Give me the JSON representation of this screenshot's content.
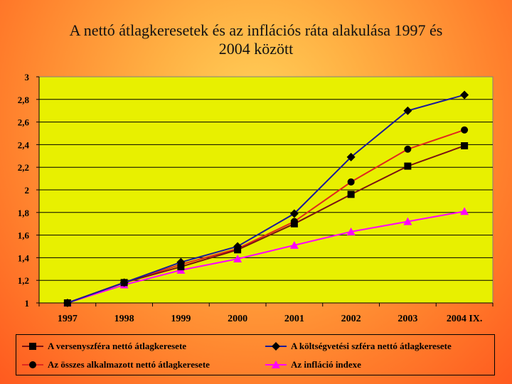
{
  "slide": {
    "title_line1": "A nettó átlagkeresetek és az inflációs ráta alakulása 1997 és",
    "title_line2": "2004 között"
  },
  "chart_data": {
    "type": "line",
    "title": "A nettó átlagkeresetek és az inflációs ráta alakulása 1997 és 2004 között",
    "categories": [
      "1997",
      "1998",
      "1999",
      "2000",
      "2001",
      "2002",
      "2003",
      "2004 IX."
    ],
    "ylim": [
      1,
      3
    ],
    "yticks": [
      "1",
      "1,2",
      "1,4",
      "1,6",
      "1,8",
      "2",
      "2,2",
      "2,4",
      "2,6",
      "2,8",
      "3"
    ],
    "ytick_values": [
      1,
      1.2,
      1.4,
      1.6,
      1.8,
      2,
      2.2,
      2.4,
      2.6,
      2.8,
      3
    ],
    "grid": true,
    "legend_position": "bottom",
    "plot_background": "#e8f000",
    "series": [
      {
        "name": "A versenyszféra nettó átlagkeresete",
        "marker": "square",
        "color": "#7a1212",
        "values": [
          1,
          1.18,
          1.32,
          1.47,
          1.7,
          1.96,
          2.21,
          2.39
        ]
      },
      {
        "name": "A költségvetési szféra nettó átlagkeresete",
        "marker": "diamond",
        "color": "#1a1a9a",
        "values": [
          1,
          1.18,
          1.36,
          1.5,
          1.79,
          2.29,
          2.7,
          2.84
        ]
      },
      {
        "name": "Az összes alkalmazott nettó átlagkeresete",
        "marker": "circle",
        "color": "#e0281e",
        "values": [
          1,
          1.18,
          1.34,
          1.48,
          1.72,
          2.07,
          2.36,
          2.53
        ]
      },
      {
        "name": "Az infláció indexe",
        "marker": "triangle",
        "color": "#ff00ff",
        "values": [
          1,
          1.16,
          1.29,
          1.39,
          1.51,
          1.63,
          1.72,
          1.81
        ]
      }
    ]
  }
}
